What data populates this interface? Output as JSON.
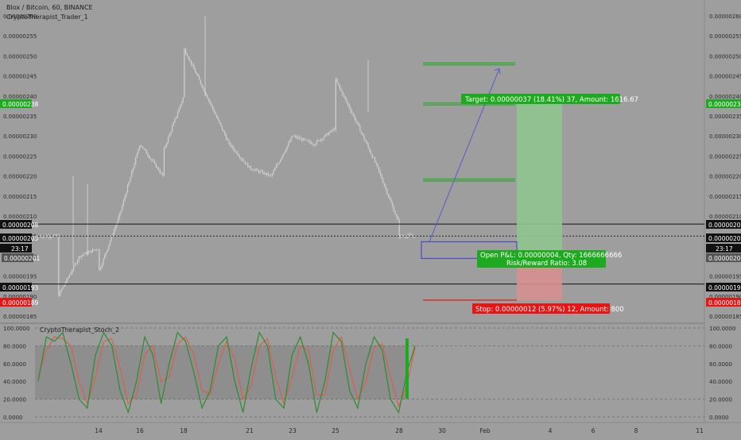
{
  "header": {
    "symbol_line": "Blox / Bitcoin, 60, BINANCE",
    "script_name": "CryptoTherapist_Trader_1",
    "indicator_name": "CryptoTherapist_Stoch_2"
  },
  "colors": {
    "background": "#9e9e9e",
    "candle": "#c8c8c8",
    "green": "#1eaa1e",
    "red": "#e81515",
    "stoch_k": "#2e8b2e",
    "stoch_d": "#d9604a",
    "arrow": "#5a5acc"
  },
  "price_axis": {
    "ticks": [
      "0.00000260",
      "0.00000255",
      "0.00000250",
      "0.00000245",
      "0.00000240",
      "0.00000235",
      "0.00000230",
      "0.00000225",
      "0.00000220",
      "0.00000215",
      "0.00000210",
      "0.00000205",
      "0.00000200",
      "0.00000195",
      "0.00000190",
      "0.00000185"
    ],
    "badges": {
      "target": "0.00000238",
      "level_high": "0.00000208",
      "current": "0.00000205",
      "countdown": "23:17",
      "entry": "0.00000201",
      "level_low": "0.00000193",
      "stop": "0.00000189"
    }
  },
  "stoch_axis": {
    "ticks": [
      "100.0000",
      "80.0000",
      "60.0000",
      "40.0000",
      "20.0000",
      "0.0000"
    ]
  },
  "time_axis": {
    "ticks": [
      "14",
      "16",
      "18",
      "21",
      "23",
      "25",
      "28",
      "30",
      "Feb",
      "4",
      "6",
      "8",
      "11"
    ]
  },
  "trade": {
    "target_label": "Target: 0.00000037 (18.41%) 37, Amount: 1616.67",
    "pnl_label": "Open P&L: 0.00000004, Qty: 1666666666",
    "rr_label": "Risk/Reward Ratio: 3.08",
    "stop_label": "Stop: 0.00000012 (5.97%) 12, Amount: 800"
  },
  "chart_data": [
    {
      "type": "candlestick",
      "title": "Blox / Bitcoin, 60, BINANCE",
      "x_ticks": [
        "14",
        "16",
        "18",
        "21",
        "23",
        "25",
        "28",
        "30",
        "Feb",
        "4",
        "6",
        "8",
        "11"
      ],
      "ylim": [
        1.83e-06,
        2.61e-06
      ],
      "y_ticks": [
        2.6e-06,
        2.55e-06,
        2.5e-06,
        2.45e-06,
        2.4e-06,
        2.35e-06,
        2.3e-06,
        2.25e-06,
        2.2e-06,
        2.15e-06,
        2.1e-06,
        2.05e-06,
        2e-06,
        1.95e-06,
        1.9e-06,
        1.85e-06
      ],
      "price_path": {
        "x": [
          "11",
          "12",
          "13",
          "14",
          "14",
          "15",
          "16",
          "17",
          "17",
          "18",
          "18",
          "19",
          "20",
          "21",
          "22",
          "23",
          "24",
          "25",
          "25",
          "26",
          "27",
          "28",
          "28"
        ],
        "y": [
          1.88e-06,
          1.9e-06,
          2e-06,
          2.02e-06,
          1.96e-06,
          2.1e-06,
          2.28e-06,
          2.2e-06,
          2.26e-06,
          2.4e-06,
          2.52e-06,
          2.4e-06,
          2.28e-06,
          2.22e-06,
          2.2e-06,
          2.3e-06,
          2.28e-06,
          2.32e-06,
          2.44e-06,
          2.34e-06,
          2.22e-06,
          2.08e-06,
          2.05e-06
        ]
      },
      "horizontal_levels": [
        2.08e-06,
        2.05e-06,
        1.93e-06
      ],
      "current_price": 2.05e-06,
      "position": {
        "entry": 2.01e-06,
        "target": 2.38e-06,
        "stop": 1.89e-06
      },
      "target_lines": [
        2.48e-06,
        2.38e-06,
        2.19e-06
      ]
    },
    {
      "type": "line",
      "title": "CryptoTherapist_Stoch_2",
      "ylim": [
        0,
        100
      ],
      "y_ticks": [
        100,
        80,
        60,
        40,
        20,
        0
      ],
      "bands": [
        20,
        80
      ],
      "series": [
        {
          "values": [
            40,
            90,
            85,
            95,
            60,
            20,
            10,
            70,
            95,
            80,
            30,
            5,
            40,
            90,
            70,
            15,
            60,
            95,
            85,
            50,
            10,
            30,
            80,
            90,
            40,
            5,
            55,
            95,
            80,
            20,
            10,
            70,
            90,
            60,
            5,
            40,
            95,
            85,
            30,
            10,
            60,
            90,
            75,
            20,
            5,
            50,
            80
          ]
        },
        {
          "values": [
            45,
            75,
            90,
            88,
            80,
            40,
            15,
            45,
            85,
            88,
            55,
            15,
            25,
            70,
            80,
            40,
            45,
            82,
            90,
            70,
            30,
            25,
            60,
            85,
            65,
            20,
            35,
            80,
            88,
            45,
            15,
            45,
            80,
            75,
            25,
            25,
            75,
            90,
            55,
            20,
            40,
            78,
            82,
            45,
            12,
            35,
            78
          ]
        }
      ]
    }
  ]
}
